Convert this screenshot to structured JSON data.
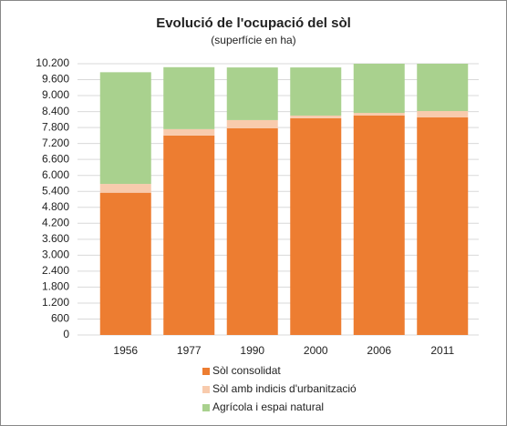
{
  "chart_data": {
    "type": "stacked_bar",
    "title": "Evolució de l'ocupació del sòl",
    "subtitle": "(superfície en ha)",
    "categories": [
      "1956",
      "1977",
      "1990",
      "2000",
      "2006",
      "2011"
    ],
    "series": [
      {
        "name": "Sòl consolidat",
        "color": "#ed7d31",
        "values": [
          5350,
          7500,
          7770,
          8150,
          8250,
          8180
        ]
      },
      {
        "name": "Sòl amb indicis d'urbanització",
        "color": "#f8cbad",
        "values": [
          330,
          240,
          310,
          100,
          100,
          240
        ]
      },
      {
        "name": "Agrícola i espai natural",
        "color": "#a9d18e",
        "values": [
          4200,
          2330,
          1980,
          1810,
          1850,
          1780
        ]
      }
    ],
    "ylim": [
      0,
      10200
    ],
    "yticks": [
      0,
      600,
      {
        "value": 1200,
        "label": "1.200"
      },
      {
        "value": 1800,
        "label": "1.800"
      },
      {
        "value": 2400,
        "label": "2.400"
      },
      {
        "value": 3000,
        "label": "3.000"
      },
      {
        "value": 3600,
        "label": "3.600"
      },
      {
        "value": 4200,
        "label": "4.200"
      },
      {
        "value": 4800,
        "label": "4.800"
      },
      {
        "value": 5400,
        "label": "5.400"
      },
      {
        "value": 6000,
        "label": "6.000"
      },
      {
        "value": 6600,
        "label": "6.600"
      },
      {
        "value": 7200,
        "label": "7.200"
      },
      {
        "value": 7800,
        "label": "7.800"
      },
      {
        "value": 8400,
        "label": "8.400"
      },
      {
        "value": 9000,
        "label": "9.000"
      },
      {
        "value": 9600,
        "label": "9.600"
      },
      {
        "value": 10200,
        "label": "10.200"
      }
    ],
    "grid": true,
    "legend": "bottom"
  }
}
